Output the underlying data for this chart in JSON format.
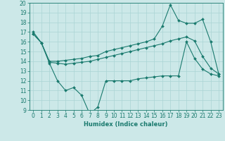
{
  "xlabel": "Humidex (Indice chaleur)",
  "xlim": [
    -0.5,
    23.5
  ],
  "ylim": [
    9,
    20
  ],
  "xticks": [
    0,
    1,
    2,
    3,
    4,
    5,
    6,
    7,
    8,
    9,
    10,
    11,
    12,
    13,
    14,
    15,
    16,
    17,
    18,
    19,
    20,
    21,
    22,
    23
  ],
  "yticks": [
    9,
    10,
    11,
    12,
    13,
    14,
    15,
    16,
    17,
    18,
    19,
    20
  ],
  "bg_color": "#cce8e8",
  "line_color": "#1a7a6e",
  "grid_color": "#aad4d4",
  "line1_x": [
    0,
    1,
    2,
    3,
    4,
    5,
    6,
    7,
    8,
    9,
    10,
    11,
    12,
    13,
    14,
    15,
    16,
    17,
    18,
    19,
    20,
    21,
    22,
    23
  ],
  "line1_y": [
    17.0,
    15.9,
    13.8,
    12.0,
    11.0,
    11.3,
    10.5,
    8.6,
    9.3,
    12.0,
    12.0,
    12.0,
    12.0,
    12.2,
    12.3,
    12.4,
    12.5,
    12.5,
    12.5,
    16.0,
    14.3,
    13.2,
    12.7,
    12.5
  ],
  "line2_x": [
    0,
    1,
    2,
    3,
    4,
    5,
    6,
    7,
    8,
    9,
    10,
    11,
    12,
    13,
    14,
    15,
    16,
    17,
    18,
    19,
    20,
    21,
    22,
    23
  ],
  "line2_y": [
    16.8,
    15.9,
    13.9,
    13.8,
    13.7,
    13.8,
    13.9,
    14.0,
    14.2,
    14.4,
    14.6,
    14.8,
    15.0,
    15.2,
    15.4,
    15.6,
    15.8,
    16.1,
    16.3,
    16.5,
    16.1,
    14.5,
    13.3,
    12.7
  ],
  "line3_x": [
    0,
    1,
    2,
    3,
    4,
    5,
    6,
    7,
    8,
    9,
    10,
    11,
    12,
    13,
    14,
    15,
    16,
    17,
    18,
    19,
    20,
    21,
    22,
    23
  ],
  "line3_y": [
    16.8,
    15.9,
    14.0,
    14.0,
    14.1,
    14.2,
    14.3,
    14.5,
    14.6,
    15.0,
    15.2,
    15.4,
    15.6,
    15.8,
    16.0,
    16.3,
    17.6,
    19.8,
    18.2,
    17.9,
    17.9,
    18.3,
    16.0,
    12.7
  ],
  "tick_fontsize": 5.5,
  "xlabel_fontsize": 6.0
}
